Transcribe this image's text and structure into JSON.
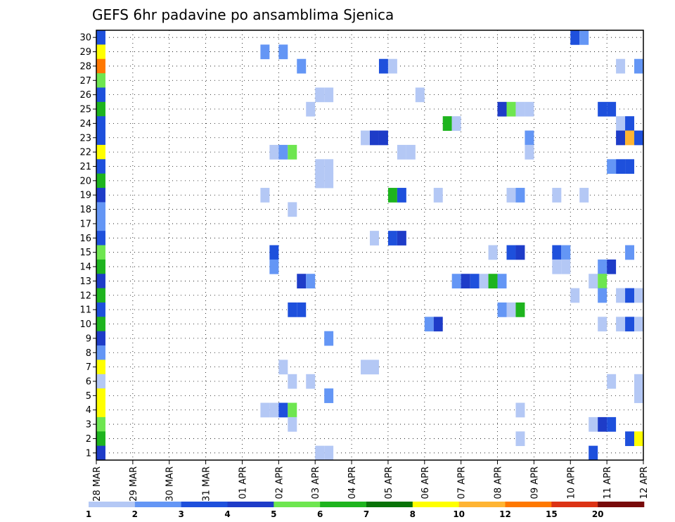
{
  "chart_data": {
    "type": "heatmap",
    "title": "GEFS 6hr padavine po ansamblima Sjenica",
    "xlabel": "",
    "ylabel": "",
    "x_tick_labels": [
      "28 MAR",
      "29 MAR",
      "30 MAR",
      "31 MAR",
      "01 APR",
      "02 APR",
      "03 APR",
      "04 APR",
      "05 APR",
      "06 APR",
      "07 APR",
      "08 APR",
      "09 APR",
      "10 APR",
      "11 APR",
      "12 APR"
    ],
    "y_tick_labels": [
      "1",
      "2",
      "3",
      "4",
      "5",
      "6",
      "7",
      "8",
      "9",
      "10",
      "11",
      "12",
      "13",
      "14",
      "15",
      "16",
      "17",
      "18",
      "19",
      "20",
      "21",
      "22",
      "23",
      "24",
      "25",
      "26",
      "27",
      "28",
      "29",
      "30"
    ],
    "x_range": [
      "28 MAR 00Z",
      "12 APR 00Z"
    ],
    "time_step_hours": 6,
    "y_range": [
      0,
      30
    ],
    "grid": "dotted",
    "colorbar": {
      "placement": "bottom",
      "tick_labels": [
        "1",
        "2",
        "3",
        "4",
        "5",
        "6",
        "7",
        "8",
        "10",
        "12",
        "15",
        "20"
      ],
      "levels": [
        1,
        2,
        3,
        4,
        5,
        6,
        7,
        8,
        10,
        12,
        15,
        20
      ],
      "colors": [
        "#b4c8f5",
        "#6496f5",
        "#1e50dc",
        "#1e3cc8",
        "#6ee650",
        "#1eb41e",
        "#087308",
        "#ffff00",
        "#ffb432",
        "#ff7800",
        "#dc3214",
        "#780a0a"
      ]
    },
    "cells": [
      {
        "member": 30,
        "step": 1,
        "value": 3.5
      },
      {
        "member": 30,
        "step": 53,
        "value": 3.5
      },
      {
        "member": 30,
        "step": 54,
        "value": 2.5
      },
      {
        "member": 29,
        "step": 1,
        "value": 8.5
      },
      {
        "member": 29,
        "step": 19,
        "value": 2.5
      },
      {
        "member": 29,
        "step": 21,
        "value": 2.5
      },
      {
        "member": 28,
        "step": 1,
        "value": 13
      },
      {
        "member": 28,
        "step": 23,
        "value": 2.5
      },
      {
        "member": 28,
        "step": 32,
        "value": 3.5
      },
      {
        "member": 28,
        "step": 33,
        "value": 1.5
      },
      {
        "member": 28,
        "step": 58,
        "value": 1.5
      },
      {
        "member": 28,
        "step": 60,
        "value": 2.5
      },
      {
        "member": 27,
        "step": 1,
        "value": 5.5
      },
      {
        "member": 26,
        "step": 1,
        "value": 3.5
      },
      {
        "member": 26,
        "step": 25,
        "value": 1.5
      },
      {
        "member": 26,
        "step": 26,
        "value": 1.5
      },
      {
        "member": 26,
        "step": 36,
        "value": 1.5
      },
      {
        "member": 25,
        "step": 1,
        "value": 6.5
      },
      {
        "member": 25,
        "step": 24,
        "value": 1.5
      },
      {
        "member": 25,
        "step": 45,
        "value": 4.5
      },
      {
        "member": 25,
        "step": 46,
        "value": 5.5
      },
      {
        "member": 25,
        "step": 47,
        "value": 1.5
      },
      {
        "member": 25,
        "step": 48,
        "value": 1.5
      },
      {
        "member": 25,
        "step": 56,
        "value": 3.5
      },
      {
        "member": 25,
        "step": 57,
        "value": 3.5
      },
      {
        "member": 24,
        "step": 1,
        "value": 3.5
      },
      {
        "member": 24,
        "step": 39,
        "value": 6.5
      },
      {
        "member": 24,
        "step": 40,
        "value": 1.5
      },
      {
        "member": 24,
        "step": 58,
        "value": 1.5
      },
      {
        "member": 24,
        "step": 59,
        "value": 3.5
      },
      {
        "member": 23,
        "step": 1,
        "value": 3.5
      },
      {
        "member": 23,
        "step": 30,
        "value": 1.5
      },
      {
        "member": 23,
        "step": 31,
        "value": 4.5
      },
      {
        "member": 23,
        "step": 32,
        "value": 4.5
      },
      {
        "member": 23,
        "step": 48,
        "value": 2.5
      },
      {
        "member": 23,
        "step": 58,
        "value": 4.5
      },
      {
        "member": 23,
        "step": 59,
        "value": 11
      },
      {
        "member": 23,
        "step": 60,
        "value": 3.5
      },
      {
        "member": 22,
        "step": 1,
        "value": 9
      },
      {
        "member": 22,
        "step": 20,
        "value": 1.5
      },
      {
        "member": 22,
        "step": 21,
        "value": 2.5
      },
      {
        "member": 22,
        "step": 22,
        "value": 5.5
      },
      {
        "member": 22,
        "step": 34,
        "value": 1.5
      },
      {
        "member": 22,
        "step": 35,
        "value": 1.5
      },
      {
        "member": 22,
        "step": 48,
        "value": 1.5
      },
      {
        "member": 21,
        "step": 1,
        "value": 3.5
      },
      {
        "member": 21,
        "step": 25,
        "value": 1.5
      },
      {
        "member": 21,
        "step": 26,
        "value": 1.5
      },
      {
        "member": 21,
        "step": 57,
        "value": 2.5
      },
      {
        "member": 21,
        "step": 58,
        "value": 3.5
      },
      {
        "member": 21,
        "step": 59,
        "value": 3.5
      },
      {
        "member": 20,
        "step": 1,
        "value": 6.5
      },
      {
        "member": 20,
        "step": 25,
        "value": 1.5
      },
      {
        "member": 20,
        "step": 26,
        "value": 1.5
      },
      {
        "member": 19,
        "step": 1,
        "value": 4.5
      },
      {
        "member": 19,
        "step": 19,
        "value": 1.5
      },
      {
        "member": 19,
        "step": 33,
        "value": 6.5
      },
      {
        "member": 19,
        "step": 34,
        "value": 3.5
      },
      {
        "member": 19,
        "step": 38,
        "value": 1.5
      },
      {
        "member": 19,
        "step": 46,
        "value": 1.5
      },
      {
        "member": 19,
        "step": 47,
        "value": 2.5
      },
      {
        "member": 19,
        "step": 51,
        "value": 1.5
      },
      {
        "member": 19,
        "step": 54,
        "value": 1.5
      },
      {
        "member": 18,
        "step": 1,
        "value": 2.5
      },
      {
        "member": 18,
        "step": 22,
        "value": 1.5
      },
      {
        "member": 17,
        "step": 1,
        "value": 2.5
      },
      {
        "member": 16,
        "step": 1,
        "value": 3.5
      },
      {
        "member": 16,
        "step": 31,
        "value": 1.5
      },
      {
        "member": 16,
        "step": 33,
        "value": 3.5
      },
      {
        "member": 16,
        "step": 34,
        "value": 4.5
      },
      {
        "member": 15,
        "step": 1,
        "value": 5.5
      },
      {
        "member": 15,
        "step": 20,
        "value": 3.5
      },
      {
        "member": 15,
        "step": 44,
        "value": 1.5
      },
      {
        "member": 15,
        "step": 46,
        "value": 3.5
      },
      {
        "member": 15,
        "step": 47,
        "value": 4.5
      },
      {
        "member": 15,
        "step": 51,
        "value": 3.5
      },
      {
        "member": 15,
        "step": 52,
        "value": 2.5
      },
      {
        "member": 15,
        "step": 59,
        "value": 2.5
      },
      {
        "member": 14,
        "step": 1,
        "value": 6.5
      },
      {
        "member": 14,
        "step": 20,
        "value": 2.5
      },
      {
        "member": 14,
        "step": 51,
        "value": 1.5
      },
      {
        "member": 14,
        "step": 52,
        "value": 1.5
      },
      {
        "member": 14,
        "step": 56,
        "value": 2.5
      },
      {
        "member": 14,
        "step": 57,
        "value": 4.5
      },
      {
        "member": 13,
        "step": 1,
        "value": 4.5
      },
      {
        "member": 13,
        "step": 23,
        "value": 4.5
      },
      {
        "member": 13,
        "step": 24,
        "value": 2.5
      },
      {
        "member": 13,
        "step": 40,
        "value": 2.5
      },
      {
        "member": 13,
        "step": 41,
        "value": 4.5
      },
      {
        "member": 13,
        "step": 42,
        "value": 3.5
      },
      {
        "member": 13,
        "step": 43,
        "value": 1.5
      },
      {
        "member": 13,
        "step": 44,
        "value": 6.5
      },
      {
        "member": 13,
        "step": 45,
        "value": 2.5
      },
      {
        "member": 13,
        "step": 55,
        "value": 1.5
      },
      {
        "member": 13,
        "step": 56,
        "value": 5.5
      },
      {
        "member": 12,
        "step": 1,
        "value": 6.5
      },
      {
        "member": 12,
        "step": 53,
        "value": 1.5
      },
      {
        "member": 12,
        "step": 56,
        "value": 2.5
      },
      {
        "member": 12,
        "step": 58,
        "value": 1.5
      },
      {
        "member": 12,
        "step": 59,
        "value": 3.5
      },
      {
        "member": 12,
        "step": 60,
        "value": 1.5
      },
      {
        "member": 11,
        "step": 1,
        "value": 3.5
      },
      {
        "member": 11,
        "step": 22,
        "value": 3.5
      },
      {
        "member": 11,
        "step": 23,
        "value": 3.5
      },
      {
        "member": 11,
        "step": 45,
        "value": 2.5
      },
      {
        "member": 11,
        "step": 46,
        "value": 1.5
      },
      {
        "member": 11,
        "step": 47,
        "value": 6.5
      },
      {
        "member": 10,
        "step": 1,
        "value": 6.5
      },
      {
        "member": 10,
        "step": 37,
        "value": 2.5
      },
      {
        "member": 10,
        "step": 38,
        "value": 4.5
      },
      {
        "member": 10,
        "step": 56,
        "value": 1.5
      },
      {
        "member": 10,
        "step": 58,
        "value": 1.5
      },
      {
        "member": 10,
        "step": 59,
        "value": 3.5
      },
      {
        "member": 10,
        "step": 60,
        "value": 1.5
      },
      {
        "member": 9,
        "step": 1,
        "value": 4.5
      },
      {
        "member": 9,
        "step": 26,
        "value": 2.5
      },
      {
        "member": 8,
        "step": 1,
        "value": 2.5
      },
      {
        "member": 7,
        "step": 1,
        "value": 8.5
      },
      {
        "member": 7,
        "step": 21,
        "value": 1.5
      },
      {
        "member": 7,
        "step": 30,
        "value": 1.5
      },
      {
        "member": 7,
        "step": 31,
        "value": 1.5
      },
      {
        "member": 6,
        "step": 1,
        "value": 1.5
      },
      {
        "member": 6,
        "step": 22,
        "value": 1.5
      },
      {
        "member": 6,
        "step": 24,
        "value": 1.5
      },
      {
        "member": 6,
        "step": 57,
        "value": 1.5
      },
      {
        "member": 6,
        "step": 60,
        "value": 1.5
      },
      {
        "member": 5,
        "step": 1,
        "value": 9
      },
      {
        "member": 5,
        "step": 26,
        "value": 2.5
      },
      {
        "member": 5,
        "step": 60,
        "value": 1.5
      },
      {
        "member": 4,
        "step": 1,
        "value": 8.5
      },
      {
        "member": 4,
        "step": 19,
        "value": 1.5
      },
      {
        "member": 4,
        "step": 20,
        "value": 1.5
      },
      {
        "member": 4,
        "step": 21,
        "value": 3.5
      },
      {
        "member": 4,
        "step": 22,
        "value": 5.5
      },
      {
        "member": 4,
        "step": 47,
        "value": 1.5
      },
      {
        "member": 3,
        "step": 1,
        "value": 5.5
      },
      {
        "member": 3,
        "step": 22,
        "value": 1.5
      },
      {
        "member": 3,
        "step": 55,
        "value": 1.5
      },
      {
        "member": 3,
        "step": 56,
        "value": 4.5
      },
      {
        "member": 3,
        "step": 57,
        "value": 3.5
      },
      {
        "member": 2,
        "step": 1,
        "value": 6.5
      },
      {
        "member": 2,
        "step": 47,
        "value": 1.5
      },
      {
        "member": 2,
        "step": 59,
        "value": 3.5
      },
      {
        "member": 2,
        "step": 60,
        "value": 9
      },
      {
        "member": 1,
        "step": 1,
        "value": 4.5
      },
      {
        "member": 1,
        "step": 25,
        "value": 1.5
      },
      {
        "member": 1,
        "step": 26,
        "value": 1.5
      },
      {
        "member": 1,
        "step": 55,
        "value": 3.5
      }
    ]
  }
}
